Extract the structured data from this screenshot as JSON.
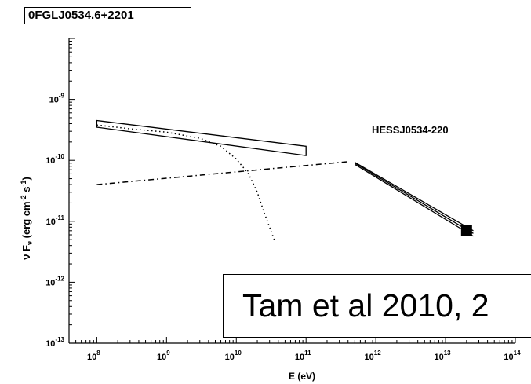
{
  "chart_data": {
    "type": "line",
    "title": "0FGLJ0534.6+2201",
    "xlabel": "E (eV)",
    "ylabel": "ν F_ν (erg cm^-2 s^-1)",
    "ylabel_parts": {
      "nu": "ν F",
      "sub": "ν",
      "open": " (erg cm",
      "e1": "-2",
      "mid": " s",
      "e2": "-1",
      "close": ")"
    },
    "xscale": "log",
    "yscale": "log",
    "xlim": [
      40000000.0,
      100000000000000.0
    ],
    "ylim": [
      1e-13,
      1e-08
    ],
    "grid": false,
    "x_ticks": [
      {
        "exp": 8,
        "base": "10",
        "sup": "8"
      },
      {
        "exp": 9,
        "base": "10",
        "sup": "9"
      },
      {
        "exp": 10,
        "base": "10",
        "sup": "10"
      },
      {
        "exp": 11,
        "base": "10",
        "sup": "11"
      },
      {
        "exp": 12,
        "base": "10",
        "sup": "12"
      },
      {
        "exp": 13,
        "base": "10",
        "sup": "13"
      },
      {
        "exp": 14,
        "base": "10",
        "sup": "14"
      }
    ],
    "y_ticks": [
      {
        "exp": -9,
        "base": "10",
        "sup": "-9"
      },
      {
        "exp": -10,
        "base": "10",
        "sup": "-10"
      },
      {
        "exp": -11,
        "base": "10",
        "sup": "-11"
      },
      {
        "exp": -12,
        "base": "10",
        "sup": "-12"
      },
      {
        "exp": -13,
        "base": "10",
        "sup": "-13"
      }
    ],
    "annotations": [
      {
        "text": "HESSJ0534-220"
      }
    ],
    "series": [
      {
        "style": "butterfly",
        "x": [
          100000000.0,
          100000000000.0,
          100000000000.0,
          100000000.0
        ],
        "y": [
          4.5e-10,
          1.7e-10,
          1.2e-10,
          3.5e-10
        ]
      },
      {
        "style": "dotted",
        "x": [
          100000000.0,
          300000000.0,
          1000000000.0,
          3000000000.0,
          6000000000.0,
          10000000000.0,
          15000000000.0,
          20000000000.0,
          25000000000.0,
          30000000000.0,
          35000000000.0
        ],
        "y": [
          3.8e-10,
          3.3e-10,
          2.9e-10,
          2.3e-10,
          1.7e-10,
          1.05e-10,
          6e-11,
          3e-11,
          1.4e-11,
          8e-12,
          5e-12
        ]
      },
      {
        "style": "dash-dot",
        "x": [
          100000000.0,
          400000000000.0
        ],
        "y": [
          4e-11,
          9.5e-11
        ]
      },
      {
        "style": "solid-bundle",
        "lines": [
          {
            "x": [
              500000000000.0,
              25000000000000.0
            ],
            "y": [
              9.3e-11,
              7e-12
            ]
          },
          {
            "x": [
              500000000000.0,
              25000000000000.0
            ],
            "y": [
              9e-11,
              6.3e-12
            ]
          },
          {
            "x": [
              500000000000.0,
              25000000000000.0
            ],
            "y": [
              8.6e-11,
              5.7e-12
            ]
          }
        ]
      },
      {
        "style": "marker-square",
        "x": [
          20000000000000.0
        ],
        "y": [
          7e-12
        ]
      }
    ]
  },
  "citation": "Tam et al 2010, 2"
}
